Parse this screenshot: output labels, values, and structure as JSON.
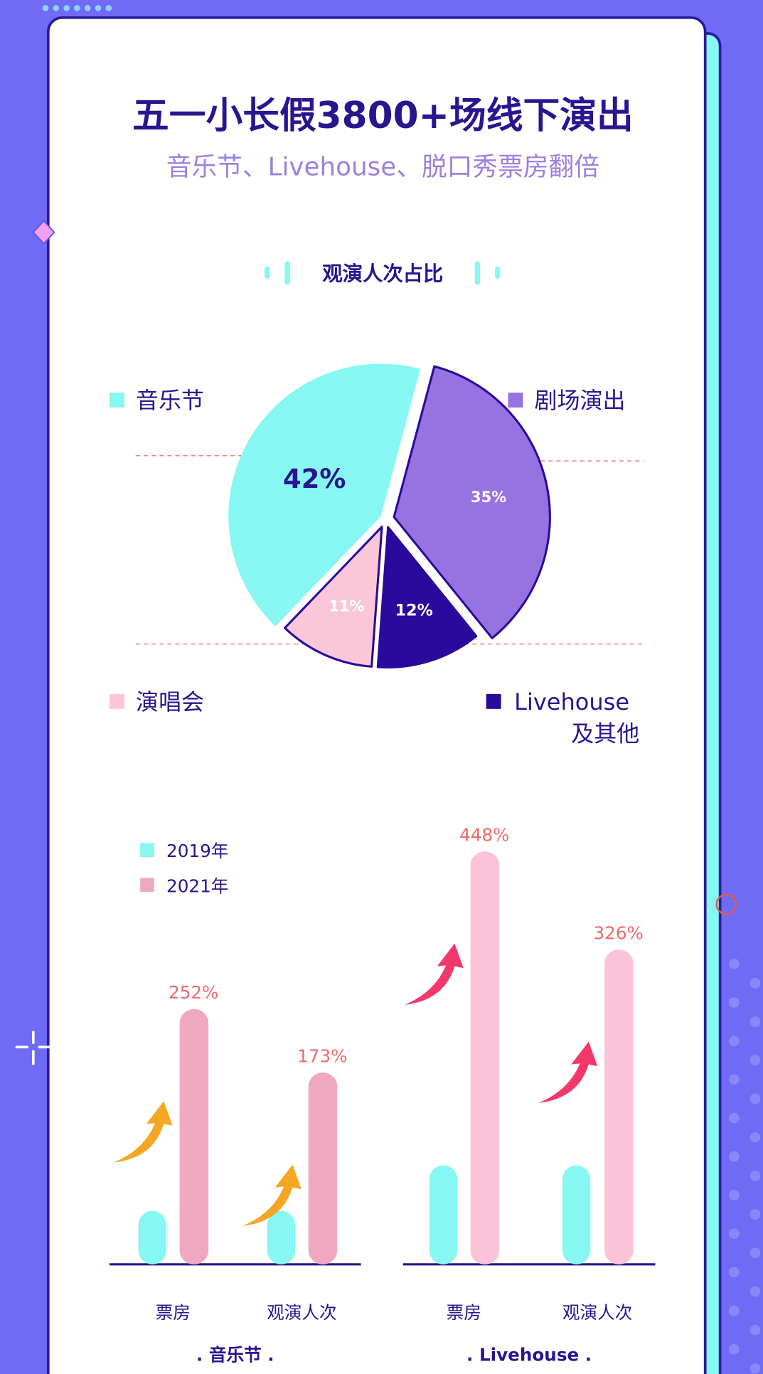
{
  "header": {
    "title": "五一小长假3800+场线下演出",
    "subtitle": "音乐节、Livehouse、脱口秀票房翻倍"
  },
  "colors": {
    "background": "#6f6bf4",
    "card_border": "#2b1a9c",
    "accent_cyan": "#86f7f2",
    "title": "#2a1590",
    "subtitle": "#9b80e0",
    "purple": "#9673e0",
    "navy": "#2a0a9c",
    "pink_light": "#fbc3d8",
    "pink_dark": "#f0a8c0",
    "growth_label": "#ef6b6b",
    "arrow_orange": "#f5a623",
    "arrow_red": "#f0386b"
  },
  "chart_data": [
    {
      "type": "pie",
      "title": "观演人次占比",
      "slices": [
        {
          "name": "剧场演出",
          "value": 35,
          "label": "35%",
          "color": "#9673e0"
        },
        {
          "name": "Livehouse 及其他",
          "value": 12,
          "label": "12%",
          "color": "#2a0a9c"
        },
        {
          "name": "演唱会",
          "value": 11,
          "label": "11%",
          "color": "#fbc7d8"
        },
        {
          "name": "音乐节",
          "value": 42,
          "label": "42%",
          "color": "#86f7f2"
        }
      ],
      "legend": [
        {
          "line1": "音乐节",
          "line2": ""
        },
        {
          "line1": "剧场演出",
          "line2": ""
        },
        {
          "line1": "演唱会",
          "line2": ""
        },
        {
          "line1": "Livehouse",
          "line2": "及其他"
        }
      ]
    },
    {
      "type": "bar",
      "legend": [
        "2019年",
        "2021年"
      ],
      "groups": [
        {
          "name": ". 音乐节 .",
          "categories": [
            "票房",
            "观演人次"
          ],
          "growth": [
            252,
            173
          ],
          "growth_labels": [
            "252%",
            "173%"
          ]
        },
        {
          "name": ". Livehouse .",
          "categories": [
            "票房",
            "观演人次"
          ],
          "growth": [
            448,
            326
          ],
          "growth_labels": [
            "448%",
            "326%"
          ]
        }
      ]
    }
  ]
}
